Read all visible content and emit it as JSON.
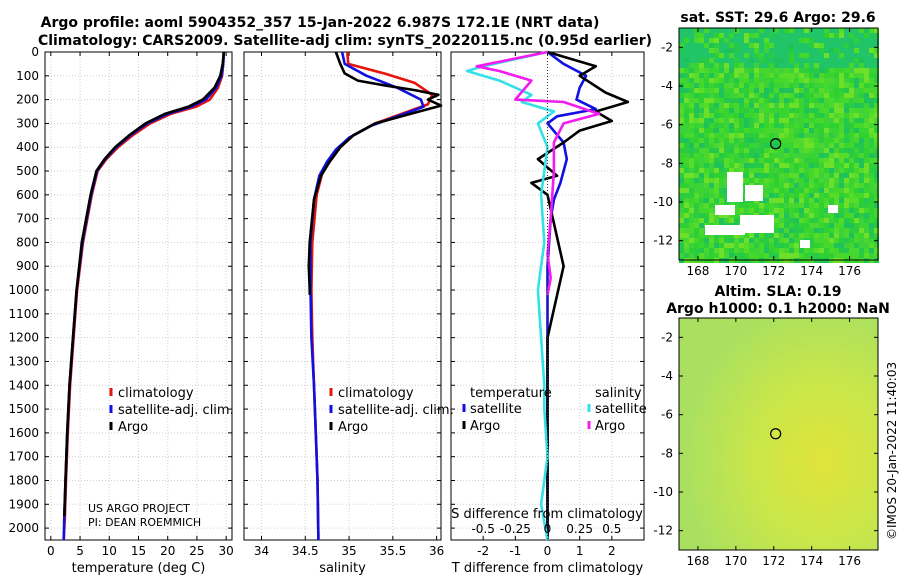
{
  "title_line1": "Argo profile: aoml 5904352_357 15-Jan-2022 6.987S 172.1E (NRT data)",
  "title_line2": "Climatology: CARS2009. Satellite-adj clim: synTS_20220115.nc (0.95d earlier)",
  "project_line1": "US ARGO PROJECT",
  "project_line2": "PI: DEAN ROEMMICH",
  "timestamp": "©IMOS 20-Jan-2022 11:40:03",
  "colors": {
    "climatology": "#e8140c",
    "satellite": "#1010e0",
    "argo": "#000000",
    "diff_sat": "#33e0e8",
    "diff_argo": "#f21cf0"
  },
  "chart_data": [
    {
      "type": "line",
      "id": "temperature",
      "xlabel": "temperature (deg C)",
      "xlim": [
        -1,
        31
      ],
      "ylim": [
        2050,
        0
      ],
      "xticks": [
        0,
        5,
        10,
        15,
        20,
        25,
        30
      ],
      "yticks": [
        0,
        100,
        200,
        300,
        400,
        500,
        600,
        700,
        800,
        900,
        1000,
        1100,
        1200,
        1300,
        1400,
        1500,
        1600,
        1700,
        1800,
        1900,
        2000
      ],
      "legend": [
        "climatology",
        "satellite-adj. clim.",
        "Argo"
      ],
      "series": [
        {
          "name": "climatology",
          "color": "#e8140c",
          "x": [
            29.6,
            29.5,
            29.3,
            28.6,
            27.2,
            24.8,
            20.5,
            17.0,
            14.0,
            11.5,
            9.5,
            8.0,
            7.0,
            5.5,
            4.5,
            3.9,
            3.3,
            2.9,
            2.6,
            2.4,
            2.2
          ],
          "y": [
            0,
            50,
            100,
            150,
            200,
            230,
            260,
            300,
            350,
            400,
            450,
            500,
            600,
            800,
            1000,
            1200,
            1400,
            1600,
            1800,
            1950,
            2050
          ]
        },
        {
          "name": "satellite-adj. clim.",
          "color": "#1010e0",
          "x": [
            29.6,
            29.5,
            29.2,
            28.3,
            26.5,
            24.0,
            20.0,
            16.5,
            13.6,
            11.2,
            9.3,
            7.9,
            6.9,
            5.4,
            4.4,
            3.8,
            3.2,
            2.8,
            2.5,
            2.3,
            2.2
          ],
          "y": [
            0,
            50,
            100,
            150,
            200,
            230,
            260,
            300,
            350,
            400,
            450,
            500,
            600,
            800,
            1000,
            1200,
            1400,
            1600,
            1800,
            1950,
            2050
          ]
        },
        {
          "name": "Argo",
          "color": "#000000",
          "x": [
            29.6,
            29.4,
            29.0,
            28.0,
            26.0,
            23.5,
            19.5,
            16.2,
            13.4,
            11.0,
            9.2,
            7.8,
            6.8,
            5.3,
            4.4,
            3.8,
            3.2,
            2.8,
            2.5,
            2.3
          ],
          "y": [
            0,
            50,
            100,
            150,
            200,
            230,
            260,
            300,
            350,
            400,
            450,
            500,
            600,
            800,
            1000,
            1200,
            1400,
            1600,
            1800,
            1950
          ]
        }
      ]
    },
    {
      "type": "line",
      "id": "salinity",
      "xlabel": "salinity",
      "xlim": [
        33.8,
        36.05
      ],
      "ylim": [
        2050,
        0
      ],
      "xticks": [
        34,
        34.5,
        35,
        35.5,
        36
      ],
      "xticklabels": [
        "34",
        "34.5",
        "35",
        "35.5",
        "36"
      ],
      "legend": [
        "climatology",
        "satellite-adj. clim.",
        "Argo"
      ],
      "series": [
        {
          "name": "climatology",
          "color": "#e8140c",
          "x": [
            34.98,
            34.99,
            35.4,
            35.75,
            35.95,
            35.9,
            35.6,
            35.3,
            35.05,
            34.9,
            34.8,
            34.7,
            34.63,
            34.58,
            34.57,
            34.58,
            34.6,
            34.62,
            34.64,
            34.65
          ],
          "y": [
            0,
            50,
            90,
            130,
            180,
            220,
            260,
            300,
            350,
            400,
            450,
            500,
            600,
            800,
            1000,
            1200,
            1400,
            1600,
            1800,
            2050
          ]
        },
        {
          "name": "satellite-adj. clim.",
          "color": "#1010e0",
          "x": [
            34.92,
            34.95,
            35.2,
            35.55,
            35.82,
            35.85,
            35.55,
            35.25,
            35.0,
            34.85,
            34.75,
            34.66,
            34.6,
            34.56,
            34.56,
            34.57,
            34.6,
            34.62,
            34.64,
            34.65
          ],
          "y": [
            0,
            50,
            100,
            150,
            200,
            230,
            270,
            310,
            360,
            410,
            460,
            520,
            620,
            800,
            1000,
            1200,
            1400,
            1600,
            1800,
            2050
          ]
        },
        {
          "name": "Argo",
          "color": "#000000",
          "x": [
            34.85,
            34.9,
            34.95,
            35.1,
            35.4,
            35.75,
            36.02,
            35.9,
            36.05,
            35.7,
            35.3,
            35.05,
            34.9,
            34.78,
            34.68,
            34.6,
            34.55,
            34.54,
            34.55,
            34.55
          ],
          "y": [
            0,
            50,
            90,
            120,
            140,
            160,
            180,
            200,
            225,
            260,
            300,
            350,
            400,
            460,
            520,
            620,
            800,
            900,
            1000,
            1020
          ]
        }
      ]
    },
    {
      "type": "line",
      "id": "difference",
      "xlabel": "T difference from climatology",
      "toplabel": "S difference from climatology",
      "xlim": [
        -3,
        3
      ],
      "ylim": [
        2050,
        0
      ],
      "xticks": [
        -2,
        -1,
        0,
        1,
        2
      ],
      "stoplabels": [
        "-0.5",
        "-0.25",
        "0",
        "0.25",
        "0.5"
      ],
      "stopvalues": [
        -2,
        -1,
        0,
        1,
        2
      ],
      "legend_temperature_title": "temperature",
      "legend_salinity_title": "salinity",
      "legend_entries": [
        "satellite",
        "Argo",
        "satellite",
        "Argo"
      ],
      "series": [
        {
          "name": "T satellite",
          "color": "#1010e0",
          "x": [
            0.0,
            0.5,
            1.2,
            1.0,
            0.9,
            1.5,
            0.3,
            0.0,
            0.5,
            0.6,
            0.4,
            0.2,
            0.1,
            0.0,
            0.0,
            0.0,
            0.0
          ],
          "y": [
            0,
            50,
            100,
            150,
            200,
            240,
            270,
            300,
            380,
            450,
            550,
            620,
            700,
            900,
            1200,
            1600,
            2050
          ]
        },
        {
          "name": "T Argo",
          "color": "#000000",
          "x": [
            0.0,
            1.5,
            1.0,
            1.8,
            2.5,
            1.5,
            2.0,
            1.0,
            0.5,
            -0.3,
            0.3,
            -0.5,
            0.0,
            0.5,
            0.0,
            0.0,
            0.0
          ],
          "y": [
            0,
            60,
            100,
            170,
            210,
            250,
            290,
            330,
            380,
            450,
            520,
            550,
            600,
            900,
            1200,
            1600,
            2050
          ]
        },
        {
          "name": "S satellite",
          "color": "#33e0e8",
          "x": [
            0.0,
            -2.0,
            -2.5,
            -1.5,
            -0.5,
            -0.8,
            0.2,
            -0.3,
            0.0,
            -0.2,
            -0.1,
            -0.3,
            -0.2,
            -0.1,
            -0.1,
            0.0,
            -0.2,
            0.0
          ],
          "y": [
            0,
            60,
            80,
            120,
            180,
            210,
            250,
            300,
            400,
            600,
            800,
            1000,
            1200,
            1400,
            1500,
            1700,
            1900,
            2050
          ]
        },
        {
          "name": "S Argo",
          "color": "#f21cf0",
          "x": [
            0.0,
            -2.2,
            -1.5,
            -0.5,
            -1.0,
            0.5,
            1.6,
            0.5,
            0.2,
            0.2,
            0.1,
            0.0,
            0.1,
            0.0
          ],
          "y": [
            0,
            60,
            80,
            120,
            200,
            210,
            260,
            300,
            380,
            500,
            700,
            850,
            950,
            1020
          ]
        }
      ]
    },
    {
      "type": "heatmap",
      "id": "sst_map",
      "title": "sat. SST: 29.6 Argo: 29.6",
      "xticks": [
        168,
        170,
        172,
        174,
        176
      ],
      "yticks": [
        -2,
        -4,
        -6,
        -8,
        -10,
        -12
      ],
      "xlim": [
        167,
        177.5
      ],
      "ylim": [
        -13,
        -1
      ],
      "float_position": [
        172.1,
        -6.987
      ]
    },
    {
      "type": "heatmap",
      "id": "sla_map",
      "title_line1": "Altim. SLA: 0.19",
      "title_line2": "Argo h1000: 0.1 h2000: NaN",
      "xticks": [
        168,
        170,
        172,
        174,
        176
      ],
      "yticks": [
        -2,
        -4,
        -6,
        -8,
        -10,
        -12
      ],
      "xlim": [
        167,
        177.5
      ],
      "ylim": [
        -13,
        -1
      ],
      "float_position": [
        172.1,
        -6.987
      ]
    }
  ]
}
